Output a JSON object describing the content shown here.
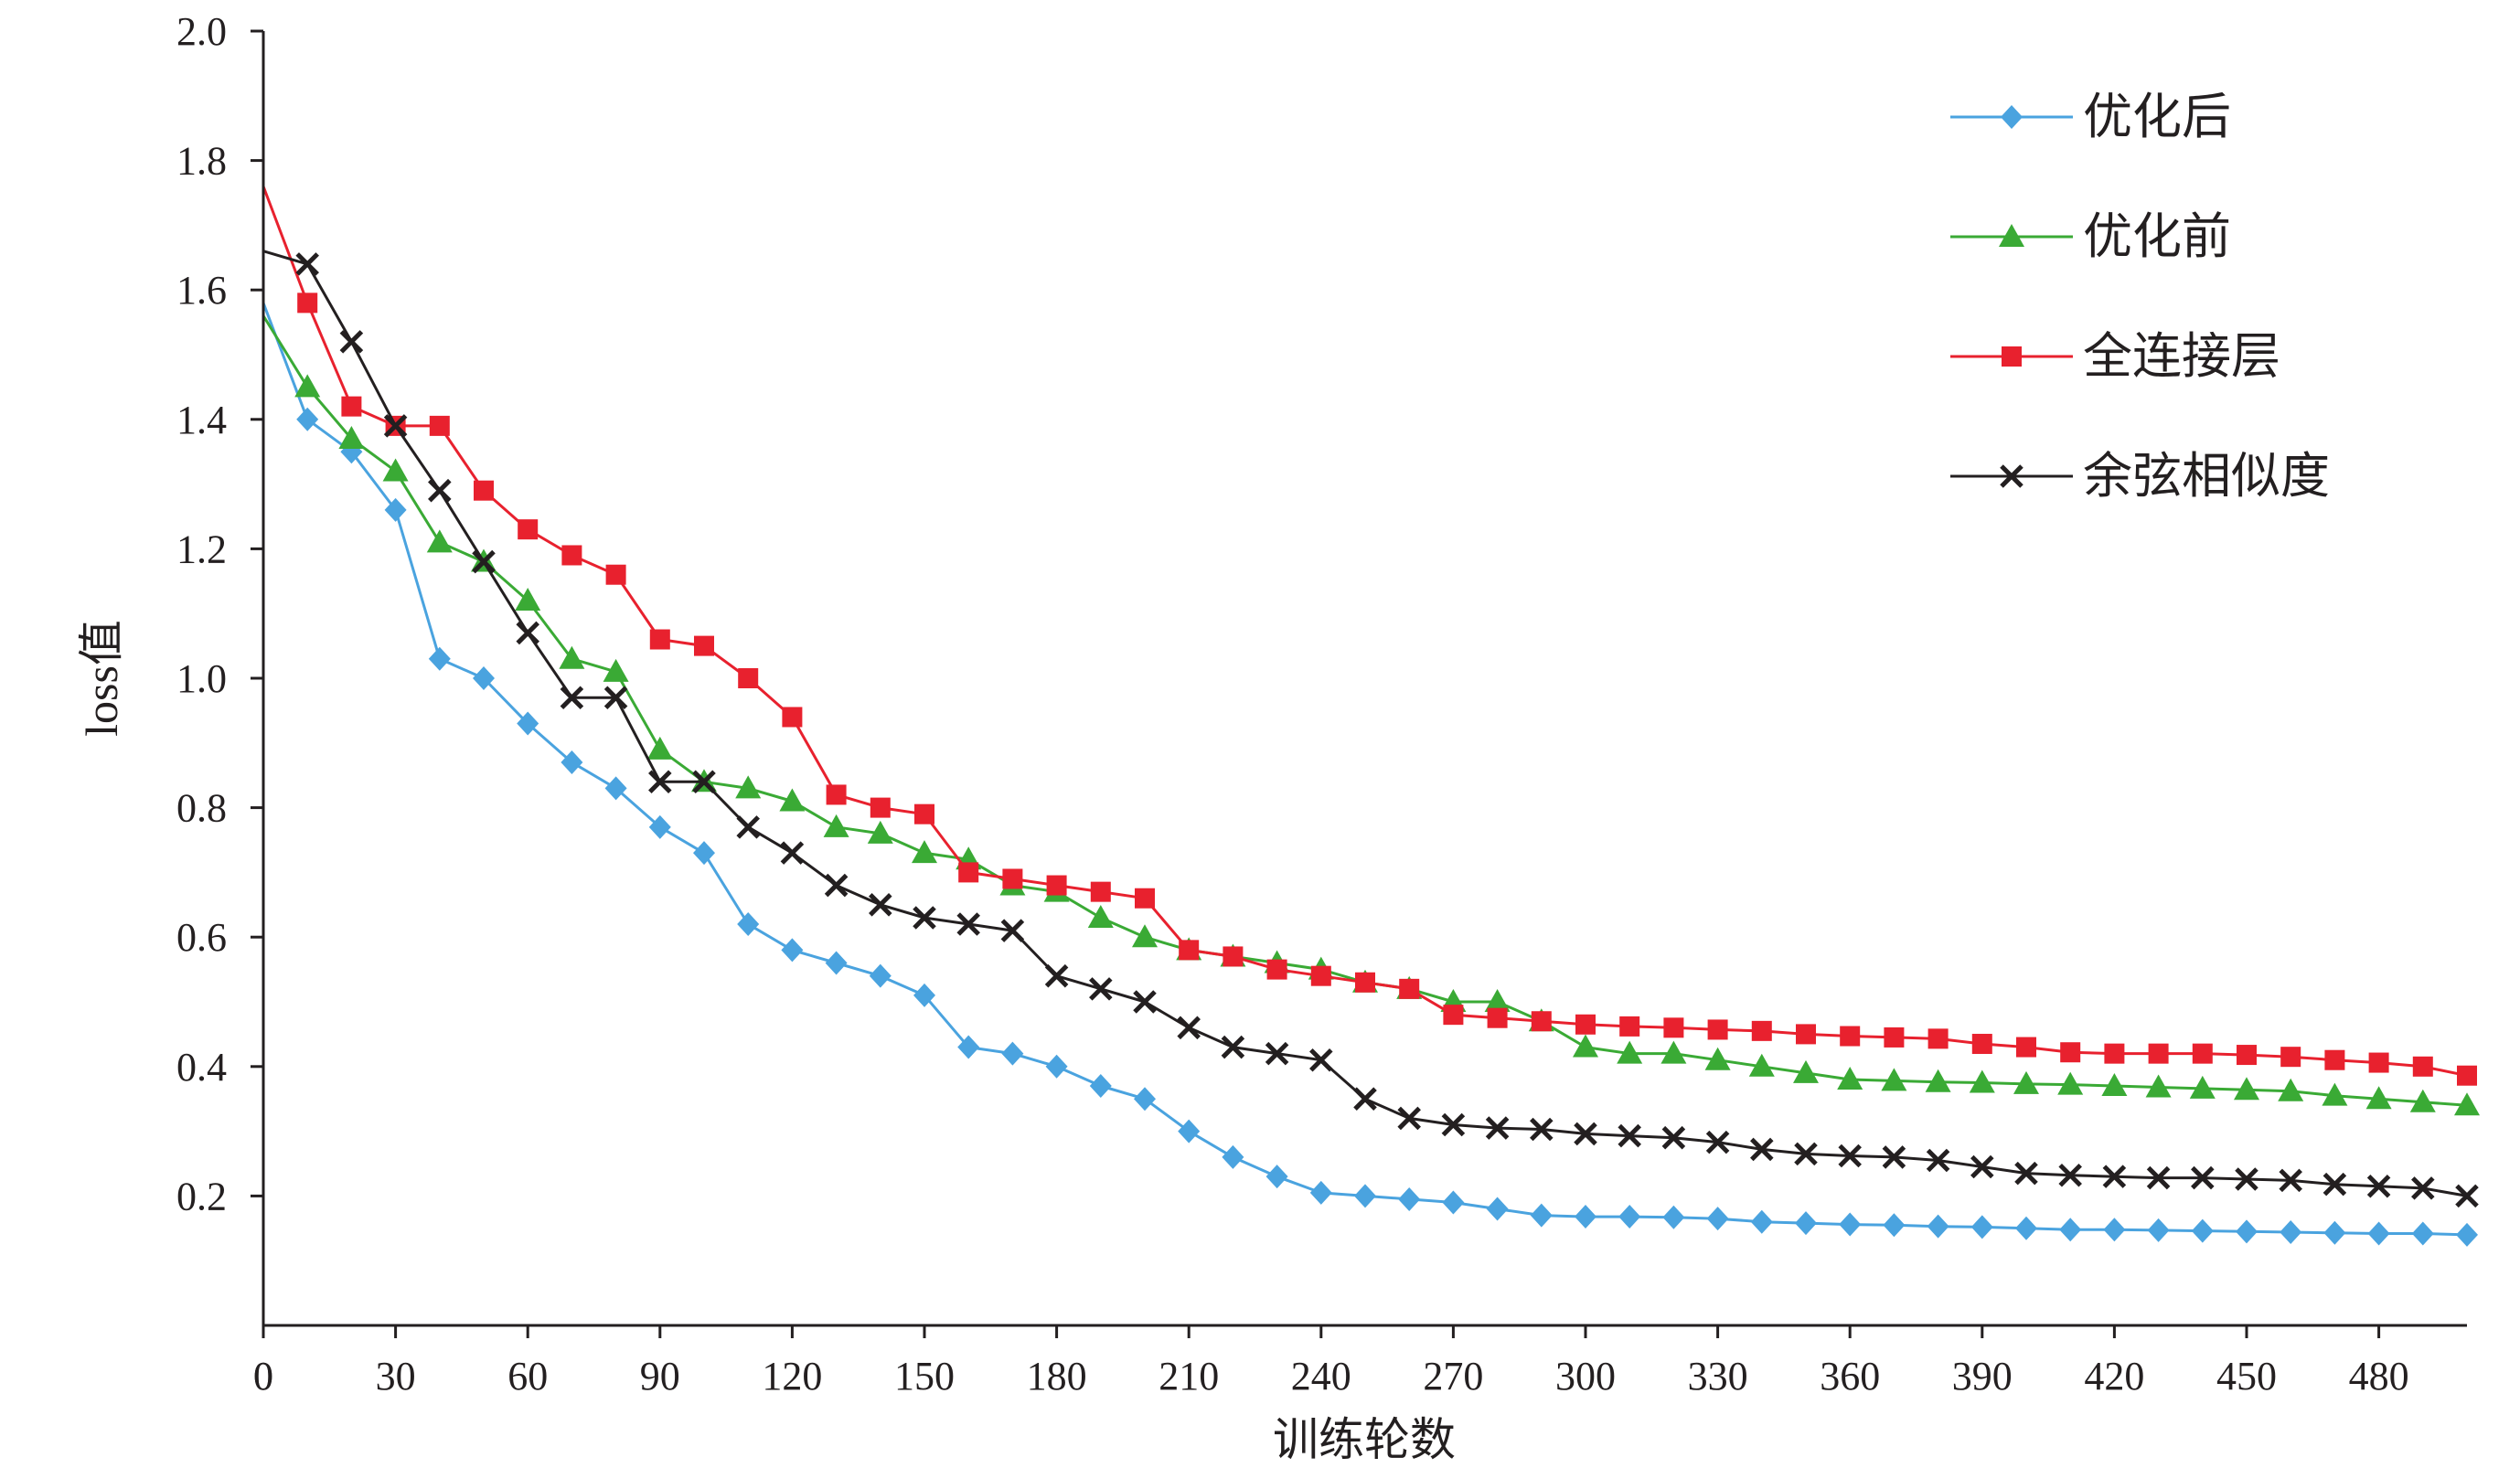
{
  "chart_data": {
    "type": "line",
    "xlabel": "训练轮数",
    "ylabel": "loss值",
    "xlim": [
      0,
      500
    ],
    "ylim": [
      0,
      2.0
    ],
    "xticks": [
      "0",
      "30",
      "60",
      "90",
      "120",
      "150",
      "180",
      "210",
      "240",
      "270",
      "300",
      "330",
      "360",
      "390",
      "420",
      "450",
      "480"
    ],
    "yticks": [
      "2.0",
      "1.8",
      "1.6",
      "1.4",
      "1.2",
      "1.0",
      "0.8",
      "0.6",
      "0.4",
      "0.2"
    ],
    "grid": false,
    "legend_position": "top-right",
    "series": [
      {
        "name": "优化后",
        "color": "#4aa3df",
        "marker": "diamond",
        "x": [
          0,
          10,
          20,
          30,
          40,
          50,
          60,
          70,
          80,
          90,
          100,
          110,
          120,
          130,
          140,
          150,
          160,
          170,
          180,
          190,
          200,
          210,
          220,
          230,
          240,
          250,
          260,
          270,
          280,
          290,
          300,
          310,
          320,
          330,
          340,
          350,
          360,
          370,
          380,
          390,
          400,
          410,
          420,
          430,
          440,
          450,
          460,
          470,
          480,
          490,
          500
        ],
        "y": [
          1.58,
          1.4,
          1.35,
          1.26,
          1.03,
          1.0,
          0.93,
          0.87,
          0.83,
          0.77,
          0.73,
          0.62,
          0.58,
          0.56,
          0.54,
          0.51,
          0.43,
          0.42,
          0.4,
          0.37,
          0.35,
          0.3,
          0.26,
          0.23,
          0.205,
          0.2,
          0.195,
          0.19,
          0.18,
          0.17,
          0.168,
          0.168,
          0.167,
          0.165,
          0.16,
          0.158,
          0.156,
          0.155,
          0.153,
          0.152,
          0.15,
          0.148,
          0.148,
          0.147,
          0.146,
          0.145,
          0.144,
          0.143,
          0.142,
          0.142,
          0.14
        ]
      },
      {
        "name": "优化前",
        "color": "#3aaa35",
        "marker": "triangle",
        "x": [
          0,
          10,
          20,
          30,
          40,
          50,
          60,
          70,
          80,
          90,
          100,
          110,
          120,
          130,
          140,
          150,
          160,
          170,
          180,
          190,
          200,
          210,
          220,
          230,
          240,
          250,
          260,
          270,
          280,
          290,
          300,
          310,
          320,
          330,
          340,
          350,
          360,
          370,
          380,
          390,
          400,
          410,
          420,
          430,
          440,
          450,
          460,
          470,
          480,
          490,
          500
        ],
        "y": [
          1.56,
          1.45,
          1.37,
          1.32,
          1.21,
          1.18,
          1.12,
          1.03,
          1.01,
          0.89,
          0.84,
          0.83,
          0.81,
          0.77,
          0.76,
          0.73,
          0.72,
          0.68,
          0.67,
          0.63,
          0.6,
          0.58,
          0.57,
          0.56,
          0.55,
          0.53,
          0.52,
          0.5,
          0.5,
          0.47,
          0.43,
          0.42,
          0.42,
          0.41,
          0.4,
          0.39,
          0.38,
          0.378,
          0.376,
          0.375,
          0.373,
          0.372,
          0.37,
          0.368,
          0.366,
          0.364,
          0.362,
          0.355,
          0.35,
          0.345,
          0.34
        ]
      },
      {
        "name": "全连接层",
        "color": "#e8212e",
        "marker": "square",
        "x": [
          0,
          10,
          20,
          30,
          40,
          50,
          60,
          70,
          80,
          90,
          100,
          110,
          120,
          130,
          140,
          150,
          160,
          170,
          180,
          190,
          200,
          210,
          220,
          230,
          240,
          250,
          260,
          270,
          280,
          290,
          300,
          310,
          320,
          330,
          340,
          350,
          360,
          370,
          380,
          390,
          400,
          410,
          420,
          430,
          440,
          450,
          460,
          470,
          480,
          490,
          500
        ],
        "y": [
          1.76,
          1.58,
          1.42,
          1.39,
          1.39,
          1.29,
          1.23,
          1.19,
          1.16,
          1.06,
          1.05,
          1.0,
          0.94,
          0.82,
          0.8,
          0.79,
          0.7,
          0.69,
          0.68,
          0.67,
          0.66,
          0.58,
          0.57,
          0.55,
          0.54,
          0.53,
          0.52,
          0.48,
          0.475,
          0.47,
          0.465,
          0.462,
          0.46,
          0.457,
          0.455,
          0.45,
          0.447,
          0.445,
          0.443,
          0.435,
          0.43,
          0.422,
          0.42,
          0.42,
          0.42,
          0.418,
          0.415,
          0.41,
          0.406,
          0.4,
          0.386
        ]
      },
      {
        "name": "余弦相似度",
        "color": "#231f20",
        "marker": "cross",
        "x": [
          0,
          10,
          20,
          30,
          40,
          50,
          60,
          70,
          80,
          90,
          100,
          110,
          120,
          130,
          140,
          150,
          160,
          170,
          180,
          190,
          200,
          210,
          220,
          230,
          240,
          250,
          260,
          270,
          280,
          290,
          300,
          310,
          320,
          330,
          340,
          350,
          360,
          370,
          380,
          390,
          400,
          410,
          420,
          430,
          440,
          450,
          460,
          470,
          480,
          490,
          500
        ],
        "y": [
          1.66,
          1.64,
          1.52,
          1.39,
          1.29,
          1.18,
          1.07,
          0.97,
          0.97,
          0.84,
          0.84,
          0.77,
          0.73,
          0.68,
          0.65,
          0.63,
          0.62,
          0.61,
          0.54,
          0.52,
          0.5,
          0.46,
          0.43,
          0.42,
          0.41,
          0.35,
          0.32,
          0.31,
          0.305,
          0.303,
          0.296,
          0.293,
          0.29,
          0.283,
          0.272,
          0.265,
          0.262,
          0.26,
          0.255,
          0.245,
          0.235,
          0.232,
          0.23,
          0.228,
          0.228,
          0.226,
          0.224,
          0.218,
          0.215,
          0.212,
          0.2
        ]
      }
    ]
  }
}
